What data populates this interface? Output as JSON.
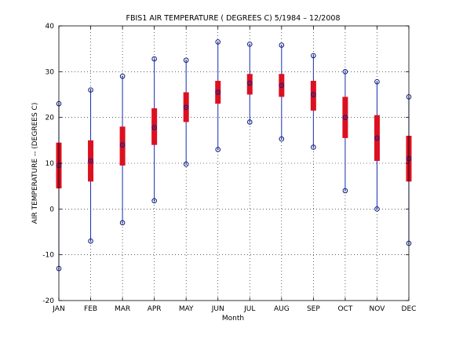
{
  "chart_data": {
    "type": "boxplot",
    "title": "FBIS1  AIR TEMPERATURE ( DEGREES C) 5/1984 – 12/2008",
    "xlabel": "Month",
    "ylabel": "AIR TEMPERATURE -- (DEGREES C)",
    "ylim": [
      -20,
      40
    ],
    "yticks": [
      "-20",
      "-10",
      "0",
      "10",
      "20",
      "30",
      "40"
    ],
    "categories": [
      "JAN",
      "FEB",
      "MAR",
      "APR",
      "MAY",
      "JUN",
      "JUL",
      "AUG",
      "SEP",
      "OCT",
      "NOV",
      "DEC"
    ],
    "series": [
      {
        "min": -13.0,
        "q1": 4.5,
        "median": 9.5,
        "q3": 14.5,
        "max": 23.0
      },
      {
        "min": -7.0,
        "q1": 6.0,
        "median": 10.5,
        "q3": 15.0,
        "max": 26.0
      },
      {
        "min": -3.0,
        "q1": 9.5,
        "median": 14.0,
        "q3": 18.0,
        "max": 29.0
      },
      {
        "min": 1.8,
        "q1": 14.0,
        "median": 17.8,
        "q3": 22.0,
        "max": 32.8
      },
      {
        "min": 9.8,
        "q1": 19.0,
        "median": 22.2,
        "q3": 25.5,
        "max": 32.5
      },
      {
        "min": 13.0,
        "q1": 23.0,
        "median": 25.5,
        "q3": 28.0,
        "max": 36.5
      },
      {
        "min": 19.0,
        "q1": 25.0,
        "median": 27.5,
        "q3": 29.5,
        "max": 36.0
      },
      {
        "min": 15.3,
        "q1": 24.5,
        "median": 27.0,
        "q3": 29.5,
        "max": 35.8
      },
      {
        "min": 13.5,
        "q1": 21.5,
        "median": 25.0,
        "q3": 28.0,
        "max": 33.5
      },
      {
        "min": 4.0,
        "q1": 15.5,
        "median": 20.0,
        "q3": 24.5,
        "max": 30.0
      },
      {
        "min": 0.0,
        "q1": 10.5,
        "median": 15.5,
        "q3": 20.5,
        "max": 27.8
      },
      {
        "min": -7.5,
        "q1": 6.0,
        "median": 11.0,
        "q3": 16.0,
        "max": 24.5
      }
    ],
    "grid": true,
    "colors": {
      "box": "#dd1020",
      "whisker": "#1a2fb0",
      "marker": "#0a1a80"
    }
  }
}
